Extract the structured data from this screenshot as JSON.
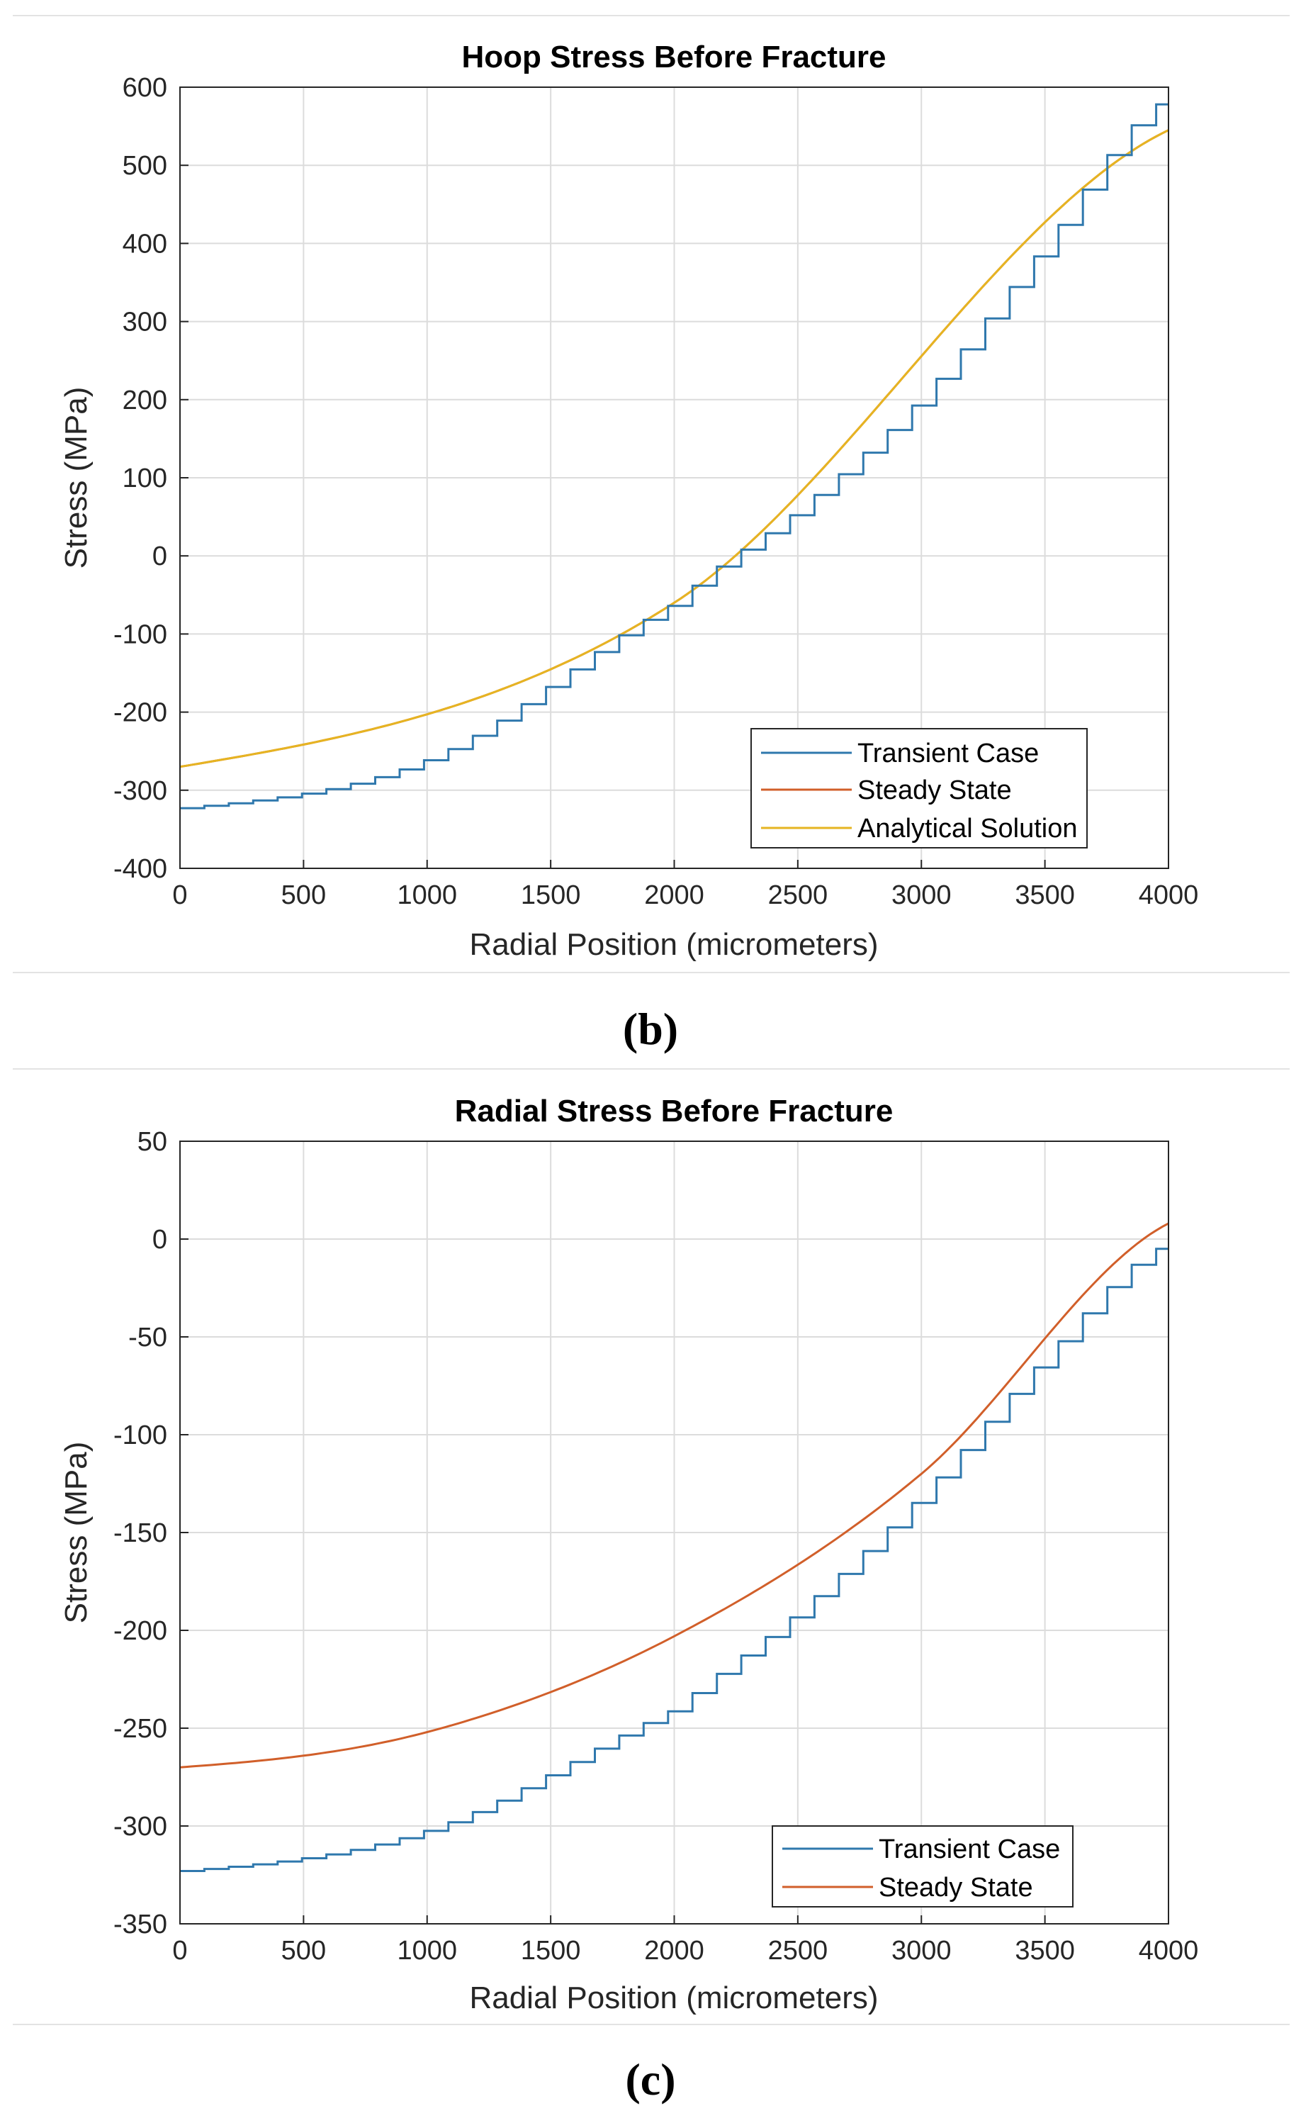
{
  "chart_data": [
    {
      "type": "line",
      "title": "Hoop Stress Before Fracture",
      "xlabel": "Radial Position (micrometers)",
      "ylabel": "Stress (MPa)",
      "xlim": [
        0,
        4000
      ],
      "ylim": [
        -400,
        600
      ],
      "xticks": [
        0,
        500,
        1000,
        1500,
        2000,
        2500,
        3000,
        3500,
        4000
      ],
      "yticks": [
        -400,
        -300,
        -200,
        -100,
        0,
        100,
        200,
        300,
        400,
        500,
        600
      ],
      "xtick_labels": [
        "0",
        "500",
        "1000",
        "1500",
        "2000",
        "2500",
        "3000",
        "3500",
        "4000"
      ],
      "ytick_labels": [
        "-400",
        "-300",
        "-200",
        "-100",
        "0",
        "100",
        "200",
        "300",
        "400",
        "500",
        "600"
      ],
      "grid": true,
      "legend": "bottom-right",
      "caption": "(b)",
      "series": [
        {
          "name": "Transient Case",
          "color": "#2f78ad",
          "style": "step",
          "step_count": 40,
          "x": [
            0,
            1000,
            2000,
            2500,
            3000,
            3500,
            3950,
            4000
          ],
          "y": [
            -323,
            -260,
            -60,
            60,
            205,
            400,
            578,
            578
          ]
        },
        {
          "name": "Steady State",
          "color": "#d15f2a",
          "style": "smooth",
          "x": [
            0,
            2000,
            4000
          ],
          "y": [
            -270,
            -60,
            545
          ]
        },
        {
          "name": "Analytical Solution",
          "color": "#e6b422",
          "style": "smooth",
          "x": [
            0,
            2000,
            4000
          ],
          "y": [
            -270,
            -60,
            545
          ]
        }
      ]
    },
    {
      "type": "line",
      "title": "Radial Stress Before Fracture",
      "xlabel": "Radial Position (micrometers)",
      "ylabel": "Stress (MPa)",
      "xlim": [
        0,
        4000
      ],
      "ylim": [
        -350,
        50
      ],
      "xticks": [
        0,
        500,
        1000,
        1500,
        2000,
        2500,
        3000,
        3500,
        4000
      ],
      "yticks": [
        -350,
        -300,
        -250,
        -200,
        -150,
        -100,
        -50,
        0,
        50
      ],
      "xtick_labels": [
        "0",
        "500",
        "1000",
        "1500",
        "2000",
        "2500",
        "3000",
        "3500",
        "4000"
      ],
      "ytick_labels": [
        "-350",
        "-300",
        "-250",
        "-200",
        "-150",
        "-100",
        "-50",
        "0",
        "50"
      ],
      "grid": true,
      "legend": "bottom-right",
      "caption": "(c)",
      "series": [
        {
          "name": "Transient Case",
          "color": "#2f78ad",
          "style": "step",
          "step_count": 40,
          "x": [
            0,
            1000,
            2000,
            2500,
            3000,
            3500,
            3950,
            4000
          ],
          "y": [
            -323,
            -302,
            -240,
            -190,
            -130,
            -60,
            -5,
            -5
          ]
        },
        {
          "name": "Steady State",
          "color": "#d15f2a",
          "style": "smooth",
          "x": [
            0,
            1000,
            2000,
            3000,
            4000
          ],
          "y": [
            -270,
            -252,
            -203,
            -120,
            8
          ]
        }
      ]
    }
  ]
}
